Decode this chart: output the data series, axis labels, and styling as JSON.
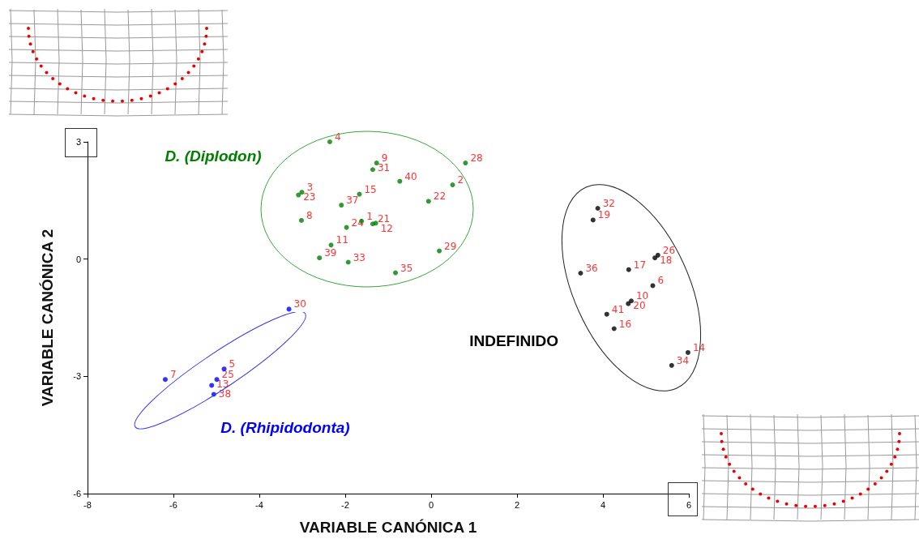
{
  "chart_data": {
    "type": "scatter",
    "xlabel": "VARIABLE CANÓNICA 1",
    "ylabel": "VARIABLE CANÓNICA 2",
    "xlim": [
      -8,
      6
    ],
    "xticks": [
      -8,
      -6,
      -4,
      -2,
      0,
      2,
      4,
      6
    ],
    "ylim": [
      -6,
      3
    ],
    "yticks": [
      -6,
      -3,
      0,
      3
    ],
    "grid": false,
    "legend": false,
    "marker": "circle",
    "series": [
      {
        "name": "D. (Diplodon)",
        "color": "#008000",
        "x": [
          -2.36,
          -1.27,
          -1.36,
          -0.73,
          0.8,
          0.5,
          -3.01,
          -3.09,
          -1.67,
          -2.09,
          -0.06,
          -3.02,
          -1.62,
          -1.36,
          -1.29,
          -1.97,
          -2.33,
          -2.6,
          -1.93,
          -0.83,
          0.19
        ],
        "values": [
          3.0,
          2.46,
          2.29,
          1.99,
          2.46,
          1.9,
          1.71,
          1.64,
          1.66,
          1.38,
          1.48,
          0.99,
          0.97,
          0.9,
          0.92,
          0.81,
          0.36,
          0.03,
          -0.08,
          -0.35,
          0.21
        ]
      },
      {
        "name": "D. (Rhipidodonta)",
        "color": "#0000ff",
        "x": [
          -3.31,
          -4.82,
          -6.19,
          -4.99,
          -5.11,
          -5.06
        ],
        "values": [
          -1.28,
          -2.81,
          -3.08,
          -3.08,
          -3.23,
          -3.46
        ]
      },
      {
        "name": "INDEFINIDO",
        "color": "#000000",
        "x": [
          3.88,
          3.77,
          5.28,
          5.21,
          4.6,
          3.48,
          5.16,
          4.66,
          4.59,
          4.09,
          4.26,
          5.98,
          5.6
        ],
        "values": [
          1.3,
          1.0,
          0.1,
          0.03,
          -0.27,
          -0.36,
          -0.68,
          -1.07,
          -1.14,
          -1.41,
          -1.78,
          -2.39,
          -2.72
        ]
      }
    ],
    "annotations": [
      {
        "text": "4",
        "x": -2.36,
        "y": 3.0
      },
      {
        "text": "9",
        "x": -1.27,
        "y": 2.46
      },
      {
        "text": "31",
        "x": -1.36,
        "y": 2.29
      },
      {
        "text": "40",
        "x": -0.73,
        "y": 1.99
      },
      {
        "text": "28",
        "x": 0.8,
        "y": 2.46
      },
      {
        "text": "2",
        "x": 0.5,
        "y": 1.9
      },
      {
        "text": "3",
        "x": -3.01,
        "y": 1.71
      },
      {
        "text": "23",
        "x": -3.09,
        "y": 1.64
      },
      {
        "text": "15",
        "x": -1.67,
        "y": 1.66
      },
      {
        "text": "37",
        "x": -2.09,
        "y": 1.38
      },
      {
        "text": "22",
        "x": -0.06,
        "y": 1.48
      },
      {
        "text": "8",
        "x": -3.02,
        "y": 0.99
      },
      {
        "text": "1",
        "x": -1.62,
        "y": 0.97
      },
      {
        "text": "21",
        "x": -1.36,
        "y": 0.9
      },
      {
        "text": "12",
        "x": -1.29,
        "y": 0.92
      },
      {
        "text": "24",
        "x": -1.97,
        "y": 0.81
      },
      {
        "text": "11",
        "x": -2.33,
        "y": 0.36
      },
      {
        "text": "39",
        "x": -2.6,
        "y": 0.03
      },
      {
        "text": "33",
        "x": -1.93,
        "y": -0.08
      },
      {
        "text": "35",
        "x": -0.83,
        "y": -0.35
      },
      {
        "text": "29",
        "x": 0.19,
        "y": 0.21
      },
      {
        "text": "30",
        "x": -3.31,
        "y": -1.28
      },
      {
        "text": "5",
        "x": -4.82,
        "y": -2.81
      },
      {
        "text": "7",
        "x": -6.19,
        "y": -3.08
      },
      {
        "text": "25",
        "x": -4.99,
        "y": -3.08
      },
      {
        "text": "13",
        "x": -5.11,
        "y": -3.23
      },
      {
        "text": "38",
        "x": -5.06,
        "y": -3.46
      },
      {
        "text": "32",
        "x": 3.88,
        "y": 1.3
      },
      {
        "text": "19",
        "x": 3.77,
        "y": 1.0
      },
      {
        "text": "26",
        "x": 5.28,
        "y": 0.1
      },
      {
        "text": "18",
        "x": 5.21,
        "y": 0.03
      },
      {
        "text": "17",
        "x": 4.6,
        "y": -0.27
      },
      {
        "text": "36",
        "x": 3.48,
        "y": -0.36
      },
      {
        "text": "6",
        "x": 5.16,
        "y": -0.68
      },
      {
        "text": "10",
        "x": 4.66,
        "y": -1.07
      },
      {
        "text": "20",
        "x": 4.59,
        "y": -1.14
      },
      {
        "text": "41",
        "x": 4.09,
        "y": -1.41
      },
      {
        "text": "16",
        "x": 4.26,
        "y": -1.78
      },
      {
        "text": "14",
        "x": 5.98,
        "y": -2.39
      },
      {
        "text": "34",
        "x": 5.6,
        "y": -2.72
      }
    ]
  }
}
